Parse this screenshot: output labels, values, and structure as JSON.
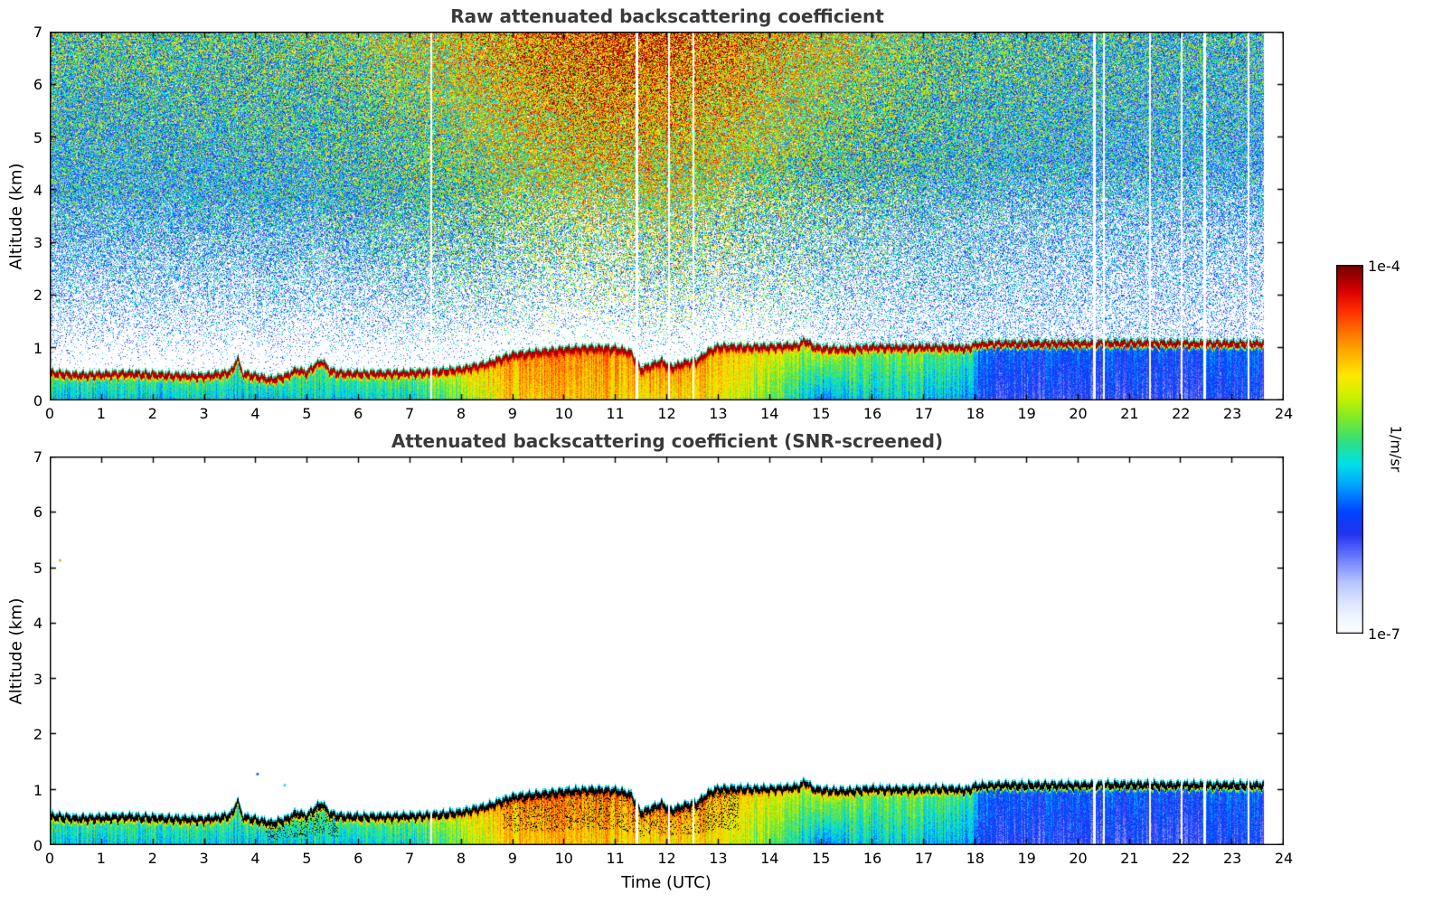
{
  "figure": {
    "background": "#ffffff"
  },
  "chart_data": {
    "type": "heatmap",
    "panels": [
      {
        "title": "Raw attenuated backscattering coefficient",
        "mode": "raw"
      },
      {
        "title": "Attenuated backscattering coefficient (SNR-screened)",
        "mode": "screened"
      }
    ],
    "xlabel": "Time (UTC)",
    "ylabel": "Altitude (km)",
    "xlim": [
      0,
      24
    ],
    "ylim": [
      0,
      7
    ],
    "xticks": [
      0,
      1,
      2,
      3,
      4,
      5,
      6,
      7,
      8,
      9,
      10,
      11,
      12,
      13,
      14,
      15,
      16,
      17,
      18,
      19,
      20,
      21,
      22,
      23,
      24
    ],
    "yticks": [
      0,
      1,
      2,
      3,
      4,
      5,
      6,
      7
    ],
    "colorbar": {
      "max_label": "1e-4",
      "min_label": "1e-7",
      "unit_label": "1/m/sr",
      "stops": [
        [
          0.0,
          "#ffffff"
        ],
        [
          0.04,
          "#f2f6ff"
        ],
        [
          0.09,
          "#d8e2ff"
        ],
        [
          0.14,
          "#b4c2ff"
        ],
        [
          0.2,
          "#7080ff"
        ],
        [
          0.27,
          "#2233ee"
        ],
        [
          0.33,
          "#0044ff"
        ],
        [
          0.4,
          "#00a0ff"
        ],
        [
          0.46,
          "#00e0e8"
        ],
        [
          0.52,
          "#2fe080"
        ],
        [
          0.58,
          "#7ae82b"
        ],
        [
          0.64,
          "#c8f000"
        ],
        [
          0.7,
          "#ffe800"
        ],
        [
          0.76,
          "#ffb000"
        ],
        [
          0.82,
          "#ff7000"
        ],
        [
          0.88,
          "#ff2a00"
        ],
        [
          0.93,
          "#d80000"
        ],
        [
          1.0,
          "#700000"
        ]
      ]
    },
    "data_end_utc": 23.62,
    "gaps_utc": [
      {
        "t": 7.42,
        "w": 0.035
      },
      {
        "t": 11.42,
        "w": 0.05
      },
      {
        "t": 12.05,
        "w": 0.04
      },
      {
        "t": 12.52,
        "w": 0.035
      },
      {
        "t": 20.32,
        "w": 0.05
      },
      {
        "t": 20.5,
        "w": 0.025
      },
      {
        "t": 21.4,
        "w": 0.03
      },
      {
        "t": 22.02,
        "w": 0.035
      },
      {
        "t": 22.46,
        "w": 0.06
      },
      {
        "t": 23.32,
        "w": 0.04
      }
    ],
    "layer_top_km": [
      [
        0,
        0.57
      ],
      [
        0.5,
        0.52
      ],
      [
        1,
        0.53
      ],
      [
        1.5,
        0.55
      ],
      [
        2,
        0.53
      ],
      [
        2.5,
        0.51
      ],
      [
        3,
        0.5
      ],
      [
        3.4,
        0.55
      ],
      [
        3.55,
        0.6
      ],
      [
        3.65,
        0.85
      ],
      [
        3.75,
        0.55
      ],
      [
        4,
        0.5
      ],
      [
        4.3,
        0.43
      ],
      [
        4.6,
        0.5
      ],
      [
        4.8,
        0.62
      ],
      [
        5.0,
        0.56
      ],
      [
        5.15,
        0.7
      ],
      [
        5.3,
        0.78
      ],
      [
        5.45,
        0.6
      ],
      [
        5.7,
        0.55
      ],
      [
        6,
        0.55
      ],
      [
        6.5,
        0.55
      ],
      [
        7,
        0.56
      ],
      [
        7.5,
        0.58
      ],
      [
        8,
        0.63
      ],
      [
        8.5,
        0.73
      ],
      [
        9,
        0.9
      ],
      [
        9.5,
        0.95
      ],
      [
        10,
        1.0
      ],
      [
        10.5,
        1.03
      ],
      [
        11,
        1.02
      ],
      [
        11.3,
        0.95
      ],
      [
        11.5,
        0.62
      ],
      [
        11.7,
        0.7
      ],
      [
        11.9,
        0.78
      ],
      [
        12.1,
        0.66
      ],
      [
        12.35,
        0.75
      ],
      [
        12.6,
        0.8
      ],
      [
        12.8,
        0.96
      ],
      [
        13,
        1.05
      ],
      [
        13.5,
        1.05
      ],
      [
        14,
        1.05
      ],
      [
        14.55,
        1.08
      ],
      [
        14.7,
        1.18
      ],
      [
        14.85,
        1.05
      ],
      [
        15,
        1.03
      ],
      [
        15.5,
        1.01
      ],
      [
        16,
        1.05
      ],
      [
        16.5,
        1.04
      ],
      [
        17,
        1.05
      ],
      [
        17.5,
        1.05
      ],
      [
        17.85,
        1.03
      ],
      [
        18,
        1.1
      ],
      [
        18.5,
        1.12
      ],
      [
        19,
        1.12
      ],
      [
        20,
        1.12
      ],
      [
        21,
        1.13
      ],
      [
        22,
        1.12
      ],
      [
        23,
        1.12
      ],
      [
        23.62,
        1.12
      ]
    ],
    "layer_cap": {
      "thickness_km": 0.1,
      "raw_value": 0.96,
      "screened_color": "#000000",
      "fringe_value": 0.5,
      "fringe_km": 0.035
    },
    "layer_colors": [
      [
        0,
        0.52,
        0.44
      ],
      [
        4,
        0.52,
        0.44
      ],
      [
        7.2,
        0.56,
        0.47
      ],
      [
        8.3,
        0.7,
        0.62
      ],
      [
        9,
        0.78,
        0.72
      ],
      [
        10.5,
        0.8,
        0.74
      ],
      [
        12,
        0.78,
        0.7
      ],
      [
        13,
        0.76,
        0.7
      ],
      [
        13.8,
        0.68,
        0.58
      ],
      [
        14.6,
        0.62,
        0.46
      ],
      [
        15.1,
        0.6,
        0.33
      ],
      [
        15.6,
        0.58,
        0.44
      ],
      [
        16.5,
        0.57,
        0.45
      ],
      [
        17.5,
        0.55,
        0.42
      ],
      [
        17.95,
        0.52,
        0.4
      ],
      [
        18.1,
        0.34,
        0.27
      ],
      [
        19,
        0.33,
        0.26
      ],
      [
        20,
        0.34,
        0.26
      ],
      [
        21,
        0.32,
        0.25
      ],
      [
        22,
        0.33,
        0.26
      ],
      [
        23.62,
        0.34,
        0.27
      ]
    ],
    "noise": {
      "seed": 42,
      "bg_amp_base": 0.5,
      "bg_amp_day_boost": 0.38,
      "bg_day_center": 11.3,
      "bg_day_width": 4.2,
      "bg_evening_drop": 0.08,
      "alt_floor": 0.3,
      "jitter": 0.55,
      "fill_rise_km": 3.2,
      "fill_offset_km": 0.15
    },
    "screened_black_speckle": {
      "regions_utc": [
        [
          4.2,
          5.6
        ],
        [
          8.8,
          13.4
        ]
      ],
      "prob": 0.15,
      "min_frac_of_layer": 0.3
    },
    "stray_points": [
      {
        "t": 0.18,
        "z": 5.15,
        "v": 0.78
      },
      {
        "t": 4.02,
        "z": 1.3,
        "v": 0.3
      },
      {
        "t": 4.55,
        "z": 1.1,
        "v": 0.45
      }
    ]
  }
}
